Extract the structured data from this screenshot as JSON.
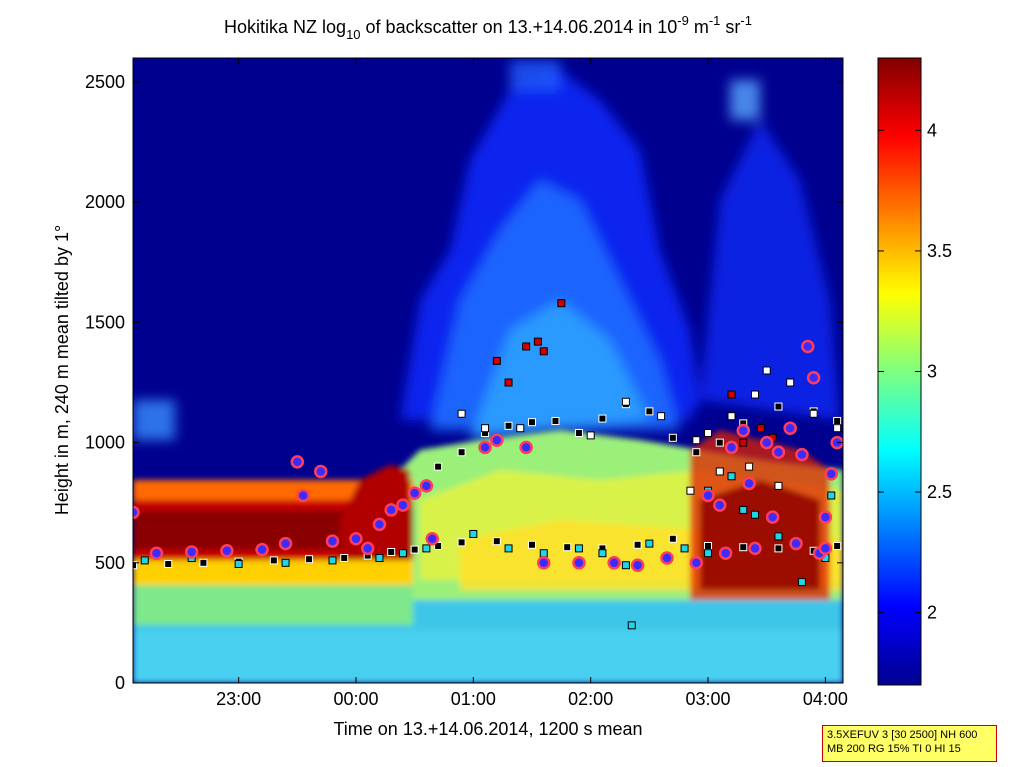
{
  "chart_data": {
    "type": "heatmap",
    "title": {
      "prefix": "Hokitika NZ log",
      "prefix_sub": "10",
      "middle": " of backscatter on 13.+14.06.2014 in 10",
      "exp1": "-9",
      "unit1": " m",
      "exp2": "-1",
      "unit2": " sr",
      "exp3": "-1"
    },
    "xlabel": "Time on 13.+14.06.2014, 1200 s mean",
    "ylabel": "Height in m, 240 m mean tilted by 1°",
    "x_range_hours": [
      22.1,
      28.15
    ],
    "x_ticks": [
      {
        "value": 23,
        "label": "23:00"
      },
      {
        "value": 24,
        "label": "00:00"
      },
      {
        "value": 25,
        "label": "01:00"
      },
      {
        "value": 26,
        "label": "02:00"
      },
      {
        "value": 27,
        "label": "03:00"
      },
      {
        "value": 28,
        "label": "04:00"
      }
    ],
    "y_range": [
      0,
      2600
    ],
    "y_ticks": [
      {
        "value": 0,
        "label": "0"
      },
      {
        "value": 500,
        "label": "500"
      },
      {
        "value": 1000,
        "label": "1000"
      },
      {
        "value": 1500,
        "label": "1500"
      },
      {
        "value": 2000,
        "label": "2000"
      },
      {
        "value": 2500,
        "label": "2500"
      }
    ],
    "colorbar": {
      "range": [
        1.7,
        4.3
      ],
      "ticks": [
        {
          "value": 2,
          "label": "2"
        },
        {
          "value": 2.5,
          "label": "2.5"
        },
        {
          "value": 3,
          "label": "3"
        },
        {
          "value": 3.5,
          "label": "3.5"
        },
        {
          "value": 4,
          "label": "4"
        }
      ],
      "colormap": "jet"
    },
    "series": [
      {
        "marker": "black-square",
        "points": [
          [
            22.1,
            490
          ],
          [
            22.4,
            495
          ],
          [
            22.7,
            500
          ],
          [
            23.0,
            505
          ],
          [
            23.3,
            510
          ],
          [
            23.6,
            515
          ],
          [
            23.9,
            520
          ],
          [
            24.1,
            530
          ],
          [
            24.3,
            545
          ],
          [
            24.5,
            555
          ],
          [
            24.7,
            570
          ],
          [
            24.9,
            585
          ],
          [
            25.2,
            590
          ],
          [
            25.5,
            575
          ],
          [
            25.8,
            565
          ],
          [
            26.1,
            560
          ],
          [
            26.4,
            575
          ],
          [
            26.7,
            600
          ],
          [
            27.0,
            570
          ],
          [
            27.3,
            565
          ],
          [
            27.6,
            560
          ],
          [
            27.9,
            550
          ],
          [
            28.1,
            570
          ],
          [
            24.7,
            900
          ],
          [
            24.9,
            960
          ],
          [
            25.1,
            1040
          ],
          [
            25.3,
            1070
          ],
          [
            25.5,
            1085
          ],
          [
            25.7,
            1090
          ],
          [
            25.9,
            1040
          ],
          [
            26.1,
            1100
          ],
          [
            26.3,
            1160
          ],
          [
            26.5,
            1130
          ],
          [
            26.7,
            1020
          ],
          [
            26.9,
            960
          ],
          [
            27.1,
            1000
          ],
          [
            27.3,
            1080
          ],
          [
            27.6,
            1150
          ],
          [
            27.9,
            1130
          ],
          [
            28.1,
            1090
          ]
        ]
      },
      {
        "marker": "cyan-square",
        "points": [
          [
            22.2,
            510
          ],
          [
            22.6,
            520
          ],
          [
            23.0,
            495
          ],
          [
            23.4,
            500
          ],
          [
            23.8,
            510
          ],
          [
            24.2,
            520
          ],
          [
            24.4,
            540
          ],
          [
            24.6,
            560
          ],
          [
            25.0,
            620
          ],
          [
            25.3,
            560
          ],
          [
            25.6,
            540
          ],
          [
            25.9,
            560
          ],
          [
            26.1,
            540
          ],
          [
            26.3,
            490
          ],
          [
            26.5,
            580
          ],
          [
            26.8,
            560
          ],
          [
            27.0,
            540
          ],
          [
            27.2,
            860
          ],
          [
            27.4,
            700
          ],
          [
            27.6,
            610
          ],
          [
            27.8,
            420
          ],
          [
            28.0,
            520
          ],
          [
            26.35,
            240
          ],
          [
            27.0,
            800
          ],
          [
            27.3,
            720
          ],
          [
            28.05,
            780
          ]
        ]
      },
      {
        "marker": "white-square",
        "points": [
          [
            24.9,
            1120
          ],
          [
            25.1,
            1060
          ],
          [
            25.4,
            1060
          ],
          [
            26.0,
            1030
          ],
          [
            26.3,
            1170
          ],
          [
            26.6,
            1110
          ],
          [
            26.9,
            1010
          ],
          [
            27.0,
            1040
          ],
          [
            27.2,
            1110
          ],
          [
            27.4,
            1200
          ],
          [
            27.5,
            1300
          ],
          [
            27.7,
            1250
          ],
          [
            27.9,
            1120
          ],
          [
            28.1,
            1060
          ],
          [
            27.1,
            880
          ],
          [
            27.35,
            900
          ],
          [
            27.6,
            820
          ],
          [
            26.85,
            800
          ]
        ]
      },
      {
        "marker": "red-square",
        "points": [
          [
            25.2,
            1340
          ],
          [
            25.3,
            1250
          ],
          [
            25.45,
            1400
          ],
          [
            25.55,
            1420
          ],
          [
            25.6,
            1380
          ],
          [
            25.75,
            1580
          ],
          [
            27.2,
            1200
          ],
          [
            27.3,
            1000
          ],
          [
            27.45,
            1060
          ],
          [
            27.55,
            1020
          ]
        ]
      },
      {
        "marker": "blue-circle",
        "points": [
          [
            22.1,
            710
          ],
          [
            22.3,
            540
          ],
          [
            22.6,
            545
          ],
          [
            22.9,
            550
          ],
          [
            23.2,
            555
          ],
          [
            23.4,
            580
          ],
          [
            23.5,
            920
          ],
          [
            23.55,
            780
          ],
          [
            23.7,
            880
          ],
          [
            23.8,
            590
          ],
          [
            24.0,
            600
          ],
          [
            24.1,
            560
          ],
          [
            24.2,
            660
          ],
          [
            24.3,
            720
          ],
          [
            24.4,
            740
          ],
          [
            24.5,
            790
          ],
          [
            24.6,
            820
          ],
          [
            24.65,
            600
          ],
          [
            25.1,
            980
          ],
          [
            25.2,
            1010
          ],
          [
            25.45,
            980
          ],
          [
            25.6,
            500
          ],
          [
            25.9,
            500
          ],
          [
            26.2,
            500
          ],
          [
            26.4,
            490
          ],
          [
            26.65,
            520
          ],
          [
            26.9,
            500
          ],
          [
            27.0,
            780
          ],
          [
            27.1,
            740
          ],
          [
            27.2,
            980
          ],
          [
            27.3,
            1050
          ],
          [
            27.35,
            830
          ],
          [
            27.5,
            1000
          ],
          [
            27.55,
            690
          ],
          [
            27.6,
            960
          ],
          [
            27.7,
            1060
          ],
          [
            27.75,
            580
          ],
          [
            27.8,
            950
          ],
          [
            27.85,
            1400
          ],
          [
            27.9,
            1270
          ],
          [
            27.95,
            540
          ],
          [
            28.0,
            560
          ],
          [
            28.05,
            870
          ],
          [
            28.1,
            1000
          ],
          [
            27.4,
            560
          ],
          [
            27.15,
            540
          ],
          [
            28.0,
            690
          ]
        ]
      }
    ]
  },
  "info_box": {
    "line1": "3.5XEFUV 3 [30 2500] NH 600",
    "line2": "MB 200 RG 15% TI 0 HI 15"
  }
}
